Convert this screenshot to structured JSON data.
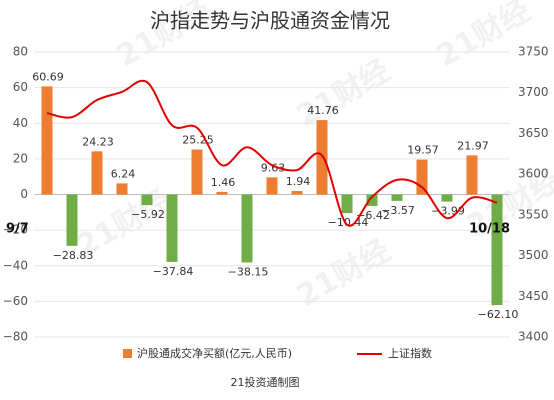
{
  "chart_data": {
    "type": "bar",
    "title": "沪指走势与沪股通资金情况",
    "categories": [
      "9/7",
      null,
      null,
      null,
      null,
      null,
      null,
      null,
      null,
      null,
      null,
      null,
      null,
      null,
      null,
      null,
      null,
      null,
      "10/18"
    ],
    "series": [
      {
        "name": "沪股通成交净买额(亿元,人民币)",
        "type": "bar",
        "color": "#ED7D31",
        "negative_color": "#70AD47",
        "values": [
          60.69,
          -28.83,
          24.23,
          6.24,
          -5.92,
          -37.84,
          25.25,
          1.46,
          -38.15,
          9.63,
          1.94,
          41.76,
          -10.44,
          -6.42,
          -3.57,
          19.57,
          -3.99,
          21.97,
          -62.1
        ],
        "value_labels": [
          "60.69",
          "−28.83",
          "24.23",
          "6.24",
          "−5.92",
          "−37.84",
          "25.25",
          "1.46",
          "−38.15",
          "9.63",
          "1.94",
          "41.76",
          "−10.44",
          "−6.42",
          "−3.57",
          "19.57",
          "−3.99",
          "21.97",
          "−62.10"
        ]
      },
      {
        "name": "上证指数",
        "type": "line",
        "axis": "y2",
        "color": "#E00000",
        "values": [
          3675,
          3670,
          3691,
          3701,
          3713,
          3660,
          3657,
          3611,
          3633,
          3611,
          3605,
          3623,
          3538,
          3572,
          3593,
          3584,
          3546,
          3571,
          3565
        ]
      }
    ],
    "ylim": [
      -80,
      80
    ],
    "yticks": [
      {
        "value": -80,
        "label": "−80"
      },
      {
        "value": -60,
        "label": "−60"
      },
      {
        "value": -40,
        "label": "−40"
      },
      {
        "value": -20,
        "label": "−20"
      },
      0,
      20,
      40,
      60,
      80
    ],
    "y2lim": [
      3400,
      3750
    ],
    "y2ticks": [
      3400,
      3450,
      3500,
      3550,
      3600,
      3650,
      3700,
      3750
    ],
    "legend": "bottom",
    "source": "21投资通制图",
    "watermark": "21财经"
  }
}
